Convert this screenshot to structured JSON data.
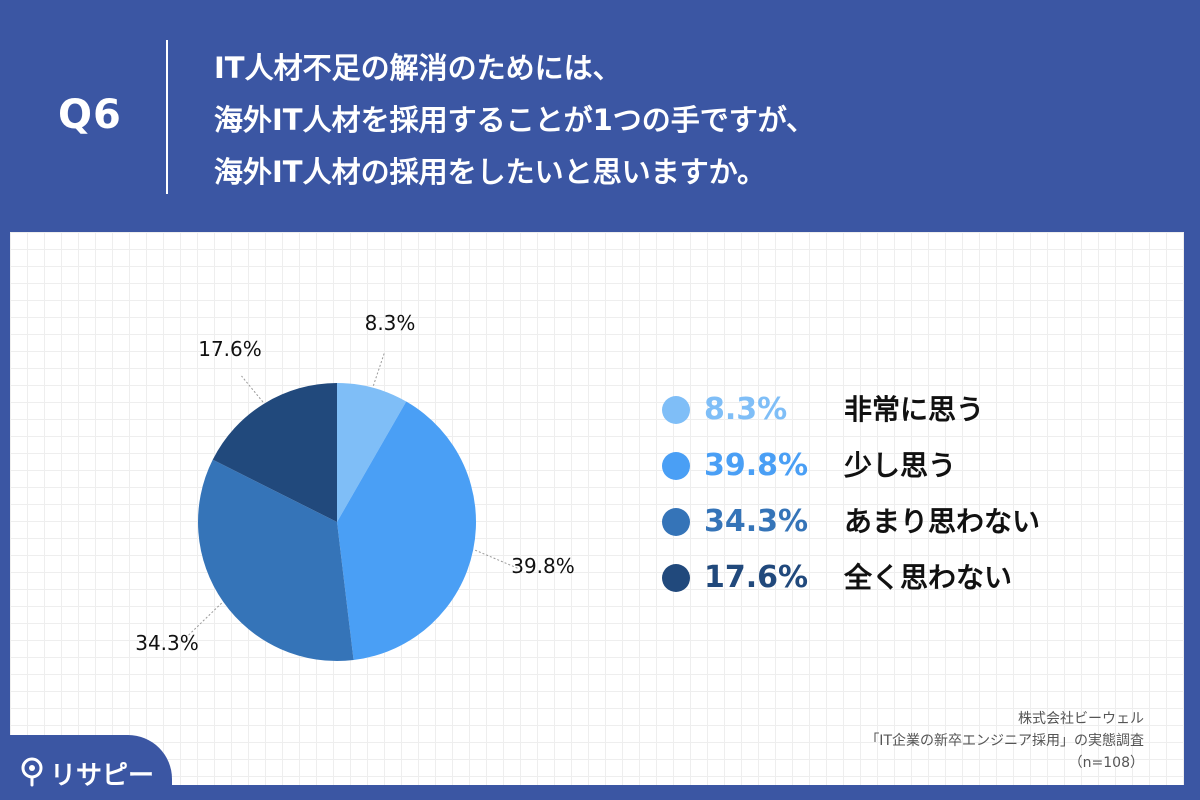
{
  "header": {
    "q_label": "Q6",
    "question_lines": [
      "IT人材不足の解消のためには、",
      "海外IT人材を採用することが1つの手ですが、",
      "海外IT人材の採用をしたいと思いますか。"
    ]
  },
  "colors": {
    "header_bg": "#3b56a3",
    "slice_1": "#7fbef7",
    "slice_2": "#4a9ff5",
    "slice_3": "#3574b8",
    "slice_4": "#21497c"
  },
  "chart_data": {
    "type": "pie",
    "start": "12 o'clock, clockwise",
    "slices": [
      {
        "label": "非常に思う",
        "value": 8.3,
        "display": "8.3%",
        "color": "#7fbef7"
      },
      {
        "label": "少し思う",
        "value": 39.8,
        "display": "39.8%",
        "color": "#4a9ff5"
      },
      {
        "label": "あまり思わない",
        "value": 34.3,
        "display": "34.3%",
        "color": "#3574b8"
      },
      {
        "label": "全く思わない",
        "value": 17.6,
        "display": "17.6%",
        "color": "#21497c"
      }
    ],
    "legend_position": "right"
  },
  "source": {
    "line1": "株式会社ビーウェル",
    "line2": "「IT企業の新卒エンジニア採用」の実態調査",
    "line3": "（n=108）"
  },
  "logo": {
    "text": "リサピー",
    "icon": "pin-icon"
  }
}
